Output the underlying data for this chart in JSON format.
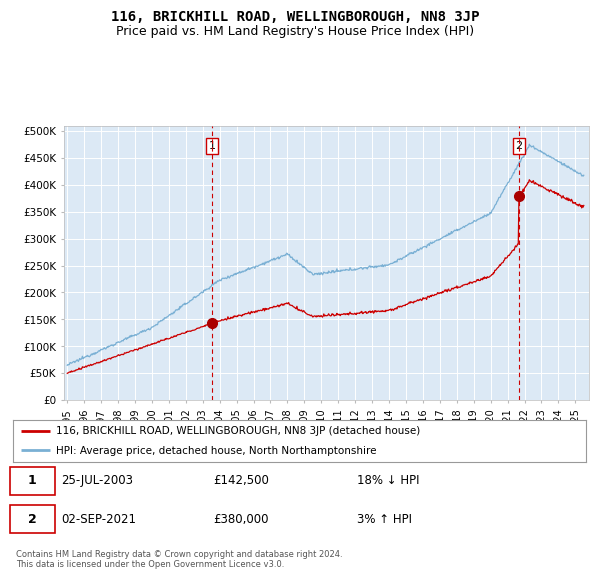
{
  "title": "116, BRICKHILL ROAD, WELLINGBOROUGH, NN8 3JP",
  "subtitle": "Price paid vs. HM Land Registry's House Price Index (HPI)",
  "ylabel_ticks": [
    "£0",
    "£50K",
    "£100K",
    "£150K",
    "£200K",
    "£250K",
    "£300K",
    "£350K",
    "£400K",
    "£450K",
    "£500K"
  ],
  "ytick_values": [
    0,
    50000,
    100000,
    150000,
    200000,
    250000,
    300000,
    350000,
    400000,
    450000,
    500000
  ],
  "ylim": [
    0,
    510000
  ],
  "xlim_start": 1994.8,
  "xlim_end": 2025.8,
  "background_color": "#ffffff",
  "plot_bg_color": "#dce9f5",
  "line_color_red": "#cc0000",
  "line_color_blue": "#7ab0d4",
  "marker1_x": 2003.56,
  "marker1_y": 142500,
  "marker2_x": 2021.67,
  "marker2_y": 380000,
  "legend_label_red": "116, BRICKHILL ROAD, WELLINGBOROUGH, NN8 3JP (detached house)",
  "legend_label_blue": "HPI: Average price, detached house, North Northamptonshire",
  "annotation1_label": "1",
  "annotation2_label": "2",
  "table_rows": [
    [
      "1",
      "25-JUL-2003",
      "£142,500",
      "18% ↓ HPI"
    ],
    [
      "2",
      "02-SEP-2021",
      "£380,000",
      "3% ↑ HPI"
    ]
  ],
  "footnote": "Contains HM Land Registry data © Crown copyright and database right 2024.\nThis data is licensed under the Open Government Licence v3.0.",
  "title_fontsize": 10,
  "subtitle_fontsize": 9,
  "tick_fontsize": 7.5
}
